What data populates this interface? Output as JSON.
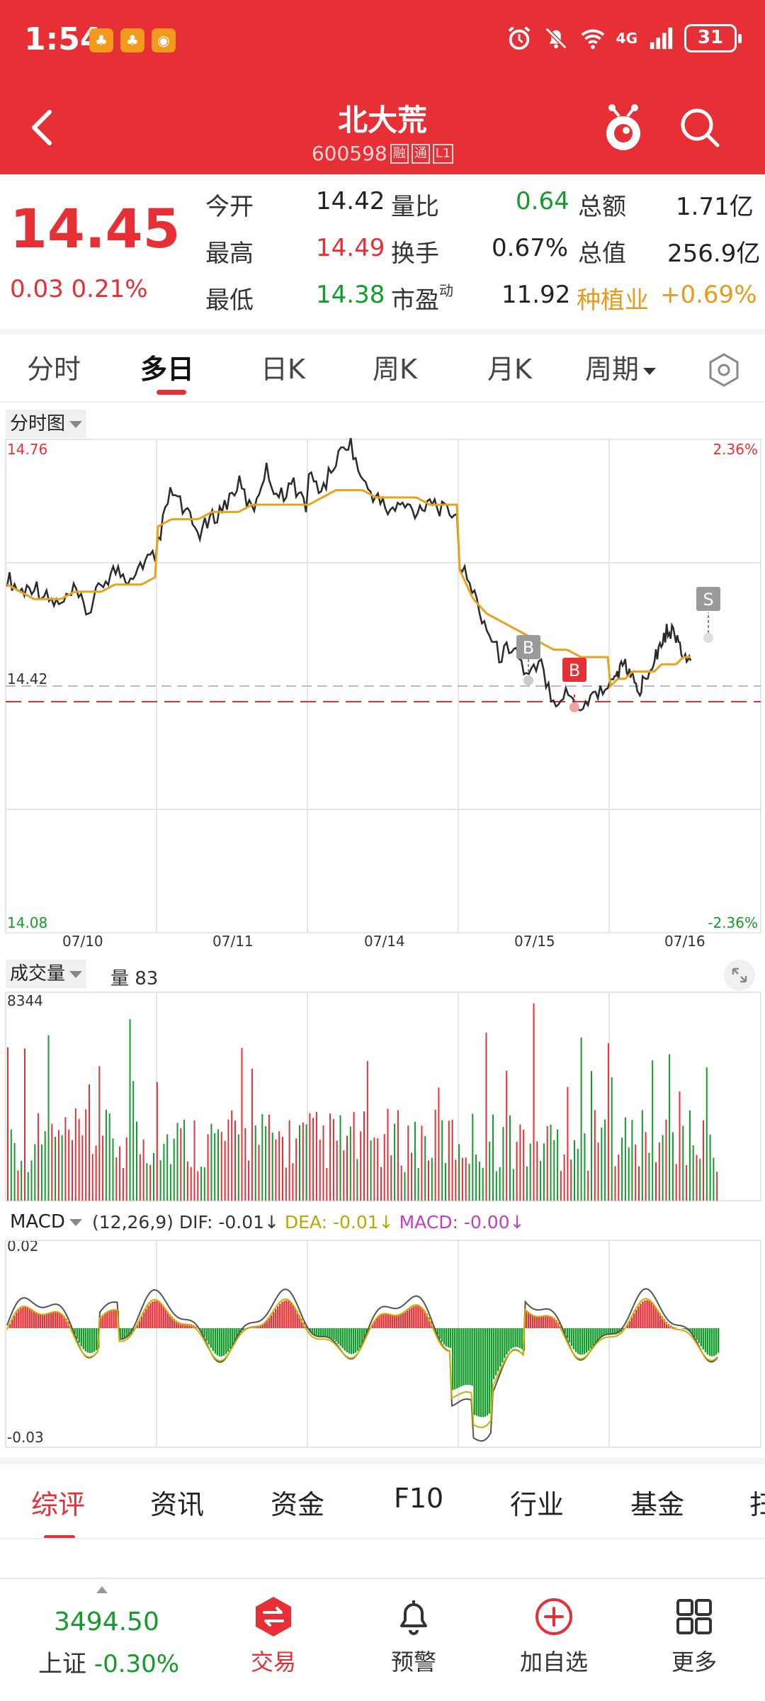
{
  "status_bar": {
    "time": "1:54",
    "app_badges": [
      "app-badge-1",
      "app-badge-2",
      "app-badge-3"
    ],
    "network": "4G",
    "battery": "31"
  },
  "header": {
    "title": "北大荒",
    "code": "600598",
    "tags": [
      "融",
      "通",
      "L1"
    ]
  },
  "quote": {
    "price": "14.45",
    "change": "0.03",
    "change_pct": "0.21%",
    "rows": [
      [
        {
          "label": "今开",
          "value": "14.42"
        },
        {
          "label": "量比",
          "value": "0.64"
        },
        {
          "label": "总额",
          "value": "1.71亿"
        }
      ],
      [
        {
          "label": "最高",
          "value": "14.49"
        },
        {
          "label": "换手",
          "value": "0.67%"
        },
        {
          "label": "总值",
          "value": "256.9亿"
        }
      ],
      [
        {
          "label": "最低",
          "value": "14.38"
        },
        {
          "label": "市盈",
          "sup": "动",
          "value": "11.92"
        },
        {
          "label": "种植业",
          "value": "+0.69%"
        }
      ]
    ]
  },
  "tabs": [
    "分时",
    "多日",
    "日K",
    "周K",
    "月K",
    "周期"
  ],
  "price_chart": {
    "label": "分时图",
    "top_price": "14.76",
    "bottom_price": "14.08",
    "top_pct": "2.36%",
    "bottom_pct": "-2.36%",
    "ref_price": "14.42",
    "dates": [
      "07/10",
      "07/11",
      "07/14",
      "07/15",
      "07/16"
    ],
    "markers": [
      "B",
      "B",
      "S"
    ]
  },
  "volume_chart": {
    "label": "成交量",
    "current": "量 83",
    "max": "8344"
  },
  "macd_chart": {
    "label": "MACD",
    "params": "(12,26,9)",
    "dif": "DIF: -0.01↓",
    "dea": "DEA: -0.01↓",
    "macd": "MACD: -0.00↓",
    "top": "0.02",
    "bottom": "-0.03"
  },
  "chart_data": {
    "type": "line",
    "x": [
      "07/10",
      "07/11",
      "07/14",
      "07/15",
      "07/16"
    ],
    "ylim": [
      14.08,
      14.76
    ],
    "reference": 14.42,
    "series": [
      {
        "values": [
          14.55,
          14.68,
          14.7,
          14.52,
          14.48
        ]
      },
      {
        "values": [
          14.53,
          14.63,
          14.68,
          14.53,
          14.46
        ]
      }
    ],
    "grid": true
  },
  "info_tabs": [
    "综评",
    "资讯",
    "资金",
    "F10",
    "行业",
    "基金",
    "扫"
  ],
  "bottom_nav": {
    "index_value": "3494.50",
    "index_name": "上证",
    "index_change": "-0.30%",
    "items": [
      "交易",
      "预警",
      "加自选",
      "更多"
    ]
  },
  "colors": {
    "brand_red": "#e63036",
    "down_green": "#139c2c",
    "avg_line": "#e8a21e"
  }
}
